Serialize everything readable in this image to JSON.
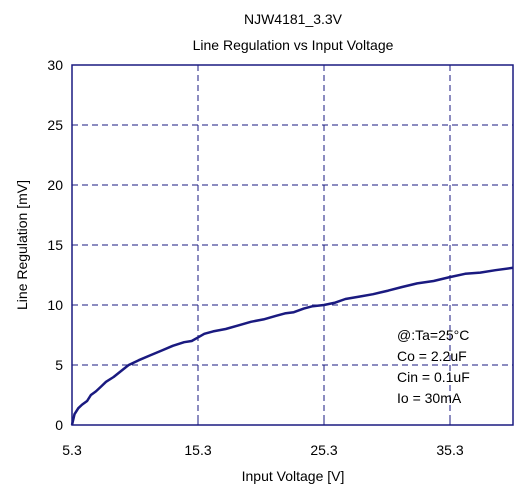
{
  "chart_data": {
    "type": "line",
    "title": "NJW4181_3.3V",
    "subtitle": "Line Regulation vs Input Voltage",
    "xlabel": "Input Voltage [V]",
    "ylabel": "Line Regulation [mV]",
    "xlim": [
      5.3,
      40.3
    ],
    "ylim": [
      0,
      30
    ],
    "xticks": [
      5.3,
      15.3,
      25.3,
      35.3
    ],
    "yticks": [
      0,
      5,
      10,
      15,
      20,
      25,
      30
    ],
    "xtick_labels": [
      "5.3",
      "15.3",
      "25.3",
      "35.3"
    ],
    "ytick_labels": [
      "0",
      "5",
      "10",
      "15",
      "20",
      "25",
      "30"
    ],
    "grid": true,
    "colors": {
      "line": "#1a1a80",
      "grid": "#1a1a80",
      "axes": "#1a1a80"
    },
    "annotations": [
      "@:Ta=25°C",
      "Co = 2.2uF",
      "Cin = 0.1uF",
      "Io = 30mA"
    ],
    "series": [
      {
        "x": [
          5.3,
          5.5,
          5.8,
          6.1,
          6.5,
          6.8,
          7.2,
          7.6,
          8.0,
          8.6,
          9.2,
          9.8,
          10.6,
          11.5,
          12.4,
          13.3,
          14.2,
          14.8,
          15.3,
          15.8,
          16.5,
          17.5,
          18.5,
          19.5,
          20.5,
          21.5,
          22.2,
          22.9,
          23.7,
          24.4,
          25.3,
          26.2,
          27.0,
          28.1,
          29.2,
          30.4,
          31.5,
          32.7,
          34.0,
          35.2,
          36.5,
          37.7,
          38.9,
          40.3
        ],
        "y": [
          0,
          0.9,
          1.4,
          1.7,
          2.0,
          2.5,
          2.8,
          3.2,
          3.6,
          4.0,
          4.5,
          5.0,
          5.4,
          5.8,
          6.2,
          6.6,
          6.9,
          7.0,
          7.3,
          7.6,
          7.8,
          8.0,
          8.3,
          8.6,
          8.8,
          9.1,
          9.3,
          9.4,
          9.7,
          9.9,
          10.0,
          10.2,
          10.5,
          10.7,
          10.9,
          11.2,
          11.5,
          11.8,
          12.0,
          12.3,
          12.6,
          12.7,
          12.9,
          13.1
        ]
      }
    ]
  }
}
